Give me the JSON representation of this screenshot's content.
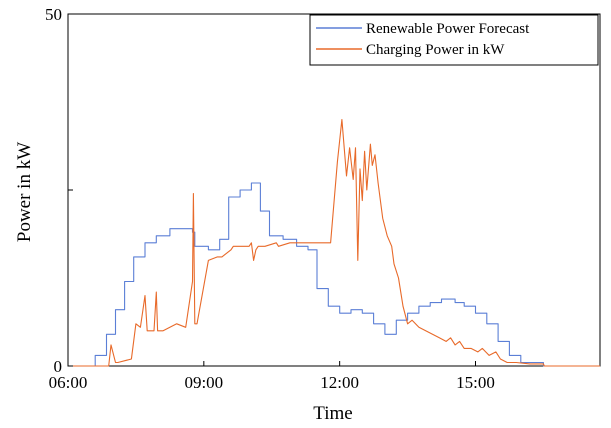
{
  "chart_data": {
    "type": "line",
    "xlabel": "Time",
    "ylabel": "Power in kW",
    "xlim": [
      6.0,
      17.75
    ],
    "ylim": [
      0,
      50
    ],
    "x_ticks": [
      {
        "value": 6,
        "label": "06:00"
      },
      {
        "value": 9,
        "label": "09:00"
      },
      {
        "value": 12,
        "label": "12:00"
      },
      {
        "value": 15,
        "label": "15:00"
      }
    ],
    "y_ticks": [
      {
        "value": 0,
        "label": "0"
      },
      {
        "value": 25,
        "label": ""
      },
      {
        "value": 50,
        "label": "50"
      }
    ],
    "grid": false,
    "legend_position": "top-right",
    "series": [
      {
        "name": "Renewable Power Forecast",
        "color": "#5b7fd6",
        "step": true,
        "x": [
          6.0,
          6.6,
          6.85,
          7.05,
          7.25,
          7.45,
          7.7,
          7.95,
          8.25,
          8.5,
          8.75,
          8.8,
          9.1,
          9.35,
          9.55,
          9.8,
          10.05,
          10.25,
          10.45,
          10.75,
          11.05,
          11.3,
          11.5,
          11.75,
          12.0,
          12.25,
          12.5,
          12.75,
          13.0,
          13.25,
          13.5,
          13.75,
          14.0,
          14.25,
          14.55,
          14.75,
          15.0,
          15.25,
          15.5,
          15.75,
          16.0,
          16.5,
          17.75
        ],
        "values": [
          0.0,
          1.5,
          4.5,
          8.0,
          12.0,
          15.5,
          17.5,
          18.5,
          19.5,
          19.5,
          19.0,
          17.0,
          16.5,
          18.0,
          24.0,
          25.0,
          26.0,
          22.0,
          18.5,
          18.0,
          17.0,
          16.5,
          11.0,
          8.5,
          7.5,
          8.0,
          7.5,
          6.0,
          4.5,
          6.5,
          7.5,
          8.5,
          9.0,
          9.5,
          9.0,
          8.5,
          7.5,
          6.0,
          3.5,
          1.5,
          0.5,
          0.0,
          0.0
        ],
        "end_x": 17.75
      },
      {
        "name": "Charging Power in kW",
        "color": "#e86a2a",
        "step": false,
        "x": [
          6.0,
          6.9,
          6.95,
          7.05,
          7.1,
          7.4,
          7.5,
          7.6,
          7.7,
          7.75,
          7.9,
          7.95,
          7.98,
          8.1,
          8.4,
          8.6,
          8.75,
          8.77,
          8.8,
          8.85,
          9.1,
          9.3,
          9.4,
          9.6,
          9.65,
          9.8,
          9.9,
          10.0,
          10.05,
          10.1,
          10.15,
          10.2,
          10.3,
          10.35,
          10.6,
          10.65,
          10.9,
          11.2,
          11.5,
          11.8,
          11.95,
          12.05,
          12.15,
          12.22,
          12.3,
          12.35,
          12.4,
          12.45,
          12.5,
          12.55,
          12.6,
          12.68,
          12.72,
          12.78,
          12.85,
          12.95,
          13.05,
          13.15,
          13.2,
          13.3,
          13.4,
          13.5,
          13.6,
          13.75,
          13.9,
          14.05,
          14.2,
          14.35,
          14.45,
          14.55,
          14.65,
          14.75,
          14.9,
          15.05,
          15.15,
          15.3,
          15.45,
          15.55,
          15.7,
          15.9,
          16.2,
          16.5,
          16.52,
          17.75
        ],
        "values": [
          0.0,
          0.0,
          3.0,
          0.5,
          0.5,
          1.0,
          6.0,
          5.5,
          10.0,
          5.0,
          5.0,
          10.5,
          5.0,
          5.0,
          6.0,
          5.5,
          12.0,
          24.5,
          6.0,
          6.0,
          15.0,
          15.5,
          15.5,
          16.5,
          17.0,
          17.0,
          17.0,
          17.0,
          17.5,
          15.0,
          16.5,
          17.0,
          17.0,
          17.0,
          17.5,
          17.0,
          17.5,
          17.5,
          17.5,
          17.5,
          29.0,
          35.0,
          27.0,
          31.0,
          26.5,
          31.0,
          15.0,
          28.0,
          23.5,
          30.5,
          25.0,
          31.5,
          28.5,
          30.0,
          26.0,
          21.0,
          18.5,
          17.0,
          14.5,
          12.5,
          8.5,
          6.0,
          6.5,
          5.5,
          5.0,
          4.5,
          4.0,
          3.5,
          4.0,
          3.0,
          3.5,
          2.5,
          2.5,
          2.0,
          2.5,
          1.5,
          2.0,
          1.0,
          0.5,
          0.5,
          0.3,
          0.3,
          0.0,
          0.0
        ]
      }
    ]
  }
}
